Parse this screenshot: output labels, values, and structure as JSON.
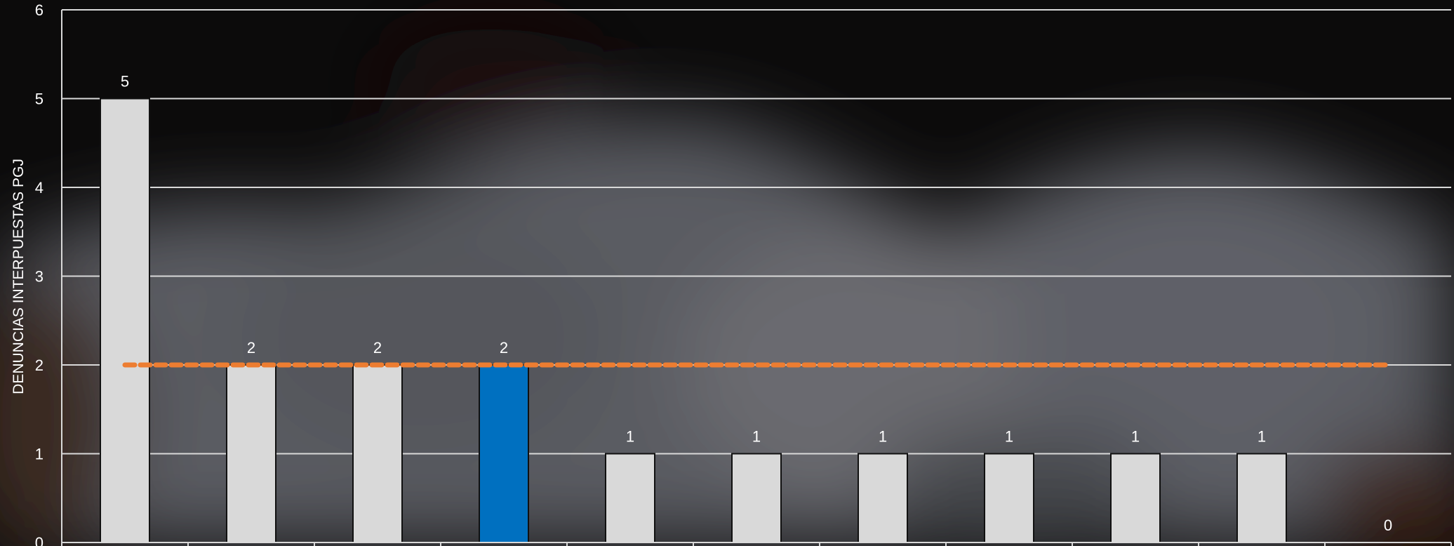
{
  "chart_data": {
    "type": "bar",
    "ylabel": "DENUNCIAS INTERPUESTAS PGJ",
    "ylim": [
      0,
      6
    ],
    "yticks": [
      "0",
      "1",
      "2",
      "3",
      "4",
      "5",
      "6"
    ],
    "grid": true,
    "categories": [
      "",
      "",
      "",
      "",
      "",
      "",
      "",
      "",
      "",
      "",
      ""
    ],
    "values": [
      5,
      2,
      2,
      2,
      1,
      1,
      1,
      1,
      1,
      1,
      0
    ],
    "data_labels": [
      "5",
      "2",
      "2",
      "2",
      "1",
      "1",
      "1",
      "1",
      "1",
      "1",
      "0"
    ],
    "highlight_index": 3,
    "colors": {
      "bar": "#d9d9d9",
      "highlight": "#0070c0",
      "bar_border": "#111111",
      "reference_line": "#ed7d31",
      "gridline": "#d9d9d9",
      "text": "#ffffff"
    },
    "reference_line": {
      "value": 2,
      "style": "dashed"
    }
  }
}
